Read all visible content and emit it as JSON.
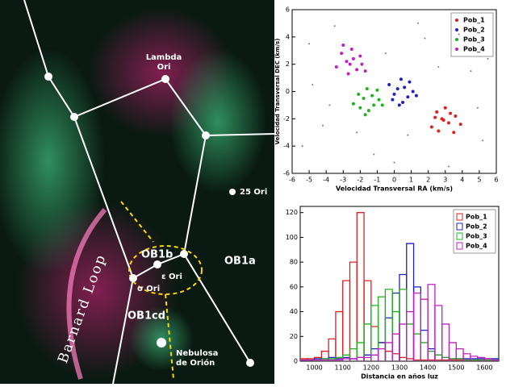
{
  "image": {
    "labels": {
      "lambda": [
        "Lambda",
        "Ori"
      ],
      "ori25": "25 Ori",
      "ob1b": "OB1b",
      "eps": "ε Ori",
      "sigma": "σ Ori",
      "ob1a": "OB1a",
      "ob1cd": "OB1cd",
      "nebula": [
        "Nebulosa",
        "de Orión"
      ],
      "barnard": "Barnard Loop"
    }
  },
  "chart_data": [
    {
      "type": "scatter",
      "xlabel": "Velocidad Transversal RA (km/s)",
      "ylabel": "Velocidad Transversal DEC (km/s)",
      "xlim": [
        -6,
        6
      ],
      "xticks": [
        -6,
        -5,
        -4,
        -3,
        -2,
        -1,
        0,
        1,
        2,
        3,
        4,
        5,
        6
      ],
      "ylim": [
        -6,
        6
      ],
      "yticks": [
        -6,
        -4,
        -2,
        0,
        2,
        4,
        6
      ],
      "legend": "upper right",
      "series": [
        {
          "color": "#777777",
          "x": [
            -5,
            -4.2,
            -3.5,
            -0.5,
            1.8,
            4.5,
            5.2,
            -4.8,
            0.8,
            3.8,
            -1.2,
            2.6,
            -3.8,
            4.9,
            -2.2,
            1.4,
            5.5,
            -5.4,
            0.0,
            3.2
          ],
          "y": [
            3.5,
            -2.5,
            4.8,
            2.8,
            3.9,
            1.5,
            -3.6,
            0.5,
            -3.2,
            4.2,
            -4.6,
            1.8,
            -1.0,
            -1.2,
            -3.0,
            5.0,
            2.4,
            -4.0,
            -5.2,
            -5.5
          ]
        },
        {
          "name": "Pob_1",
          "color": "#e02020",
          "x": [
            2.5,
            3.2,
            2.8,
            3.6,
            2.2,
            3.0,
            3.9,
            2.6,
            3.3,
            2.9,
            3.5,
            2.4
          ],
          "y": [
            -1.5,
            -2.3,
            -2.0,
            -1.8,
            -2.6,
            -1.2,
            -2.4,
            -2.9,
            -1.6,
            -2.1,
            -3.0,
            -1.9
          ]
        },
        {
          "name": "Pob_2",
          "color": "#2020c0",
          "x": [
            0.2,
            0.8,
            -0.3,
            1.1,
            0.5,
            0.0,
            0.9,
            0.4,
            -0.1,
            1.3,
            0.6,
            0.3
          ],
          "y": [
            0.2,
            -0.4,
            0.5,
            0.0,
            -0.8,
            -0.2,
            0.7,
            0.9,
            -0.6,
            -0.3,
            0.3,
            -1.0
          ]
        },
        {
          "name": "Pob_3",
          "color": "#20b020",
          "x": [
            -1.8,
            -1.2,
            -2.1,
            -0.9,
            -1.5,
            -2.4,
            -1.0,
            -1.7,
            -1.3,
            -2.0,
            -0.7,
            -1.6
          ],
          "y": [
            -0.5,
            -1.0,
            -0.2,
            -0.6,
            -1.4,
            -0.9,
            0.1,
            -1.7,
            -0.3,
            -1.2,
            -1.0,
            0.2
          ]
        },
        {
          "name": "Pob_4",
          "color": "#c020c0",
          "x": [
            -2.8,
            -2.2,
            -3.1,
            -1.9,
            -2.5,
            -3.4,
            -2.0,
            -2.7,
            -2.4,
            -3.0,
            -1.7,
            -2.6
          ],
          "y": [
            2.2,
            1.6,
            2.8,
            2.0,
            3.1,
            1.8,
            2.6,
            1.3,
            2.4,
            3.4,
            1.5,
            2.0
          ]
        }
      ]
    },
    {
      "type": "histogram",
      "xlabel": "Distancia en años luz",
      "xlim": [
        950,
        1650
      ],
      "xticks": [
        1000,
        1100,
        1200,
        1300,
        1400,
        1500,
        1600
      ],
      "ylim": [
        0,
        125
      ],
      "yticks": [
        0,
        20,
        40,
        60,
        80,
        100,
        120
      ],
      "legend": "upper right",
      "bins": [
        950,
        975,
        1000,
        1025,
        1050,
        1075,
        1100,
        1125,
        1150,
        1175,
        1200,
        1225,
        1250,
        1275,
        1300,
        1325,
        1350,
        1375,
        1400,
        1425,
        1450,
        1475,
        1500,
        1525,
        1550,
        1575,
        1600,
        1625,
        1650
      ],
      "series": [
        {
          "name": "Pob_1",
          "color": "#e02020",
          "values": [
            2,
            2,
            3,
            8,
            18,
            40,
            65,
            80,
            120,
            65,
            28,
            15,
            8,
            6,
            3,
            2,
            1,
            1,
            1,
            1,
            1,
            1,
            1,
            1,
            1,
            1,
            1,
            1
          ]
        },
        {
          "name": "Pob_2",
          "color": "#2020c0",
          "values": [
            1,
            1,
            2,
            2,
            3,
            2,
            3,
            2,
            3,
            5,
            10,
            15,
            35,
            55,
            70,
            95,
            60,
            25,
            10,
            5,
            3,
            2,
            2,
            2,
            2,
            2,
            2,
            2
          ]
        },
        {
          "name": "Pob_3",
          "color": "#20b020",
          "values": [
            1,
            1,
            1,
            2,
            2,
            3,
            5,
            10,
            15,
            30,
            45,
            52,
            58,
            40,
            58,
            30,
            22,
            15,
            8,
            5,
            3,
            2,
            2,
            1,
            1,
            1,
            1,
            1
          ]
        },
        {
          "name": "Pob_4",
          "color": "#c020c0",
          "values": [
            1,
            1,
            1,
            1,
            1,
            1,
            2,
            2,
            3,
            3,
            5,
            10,
            15,
            22,
            30,
            40,
            55,
            50,
            62,
            45,
            30,
            15,
            10,
            6,
            4,
            3,
            2,
            1
          ]
        }
      ]
    }
  ]
}
